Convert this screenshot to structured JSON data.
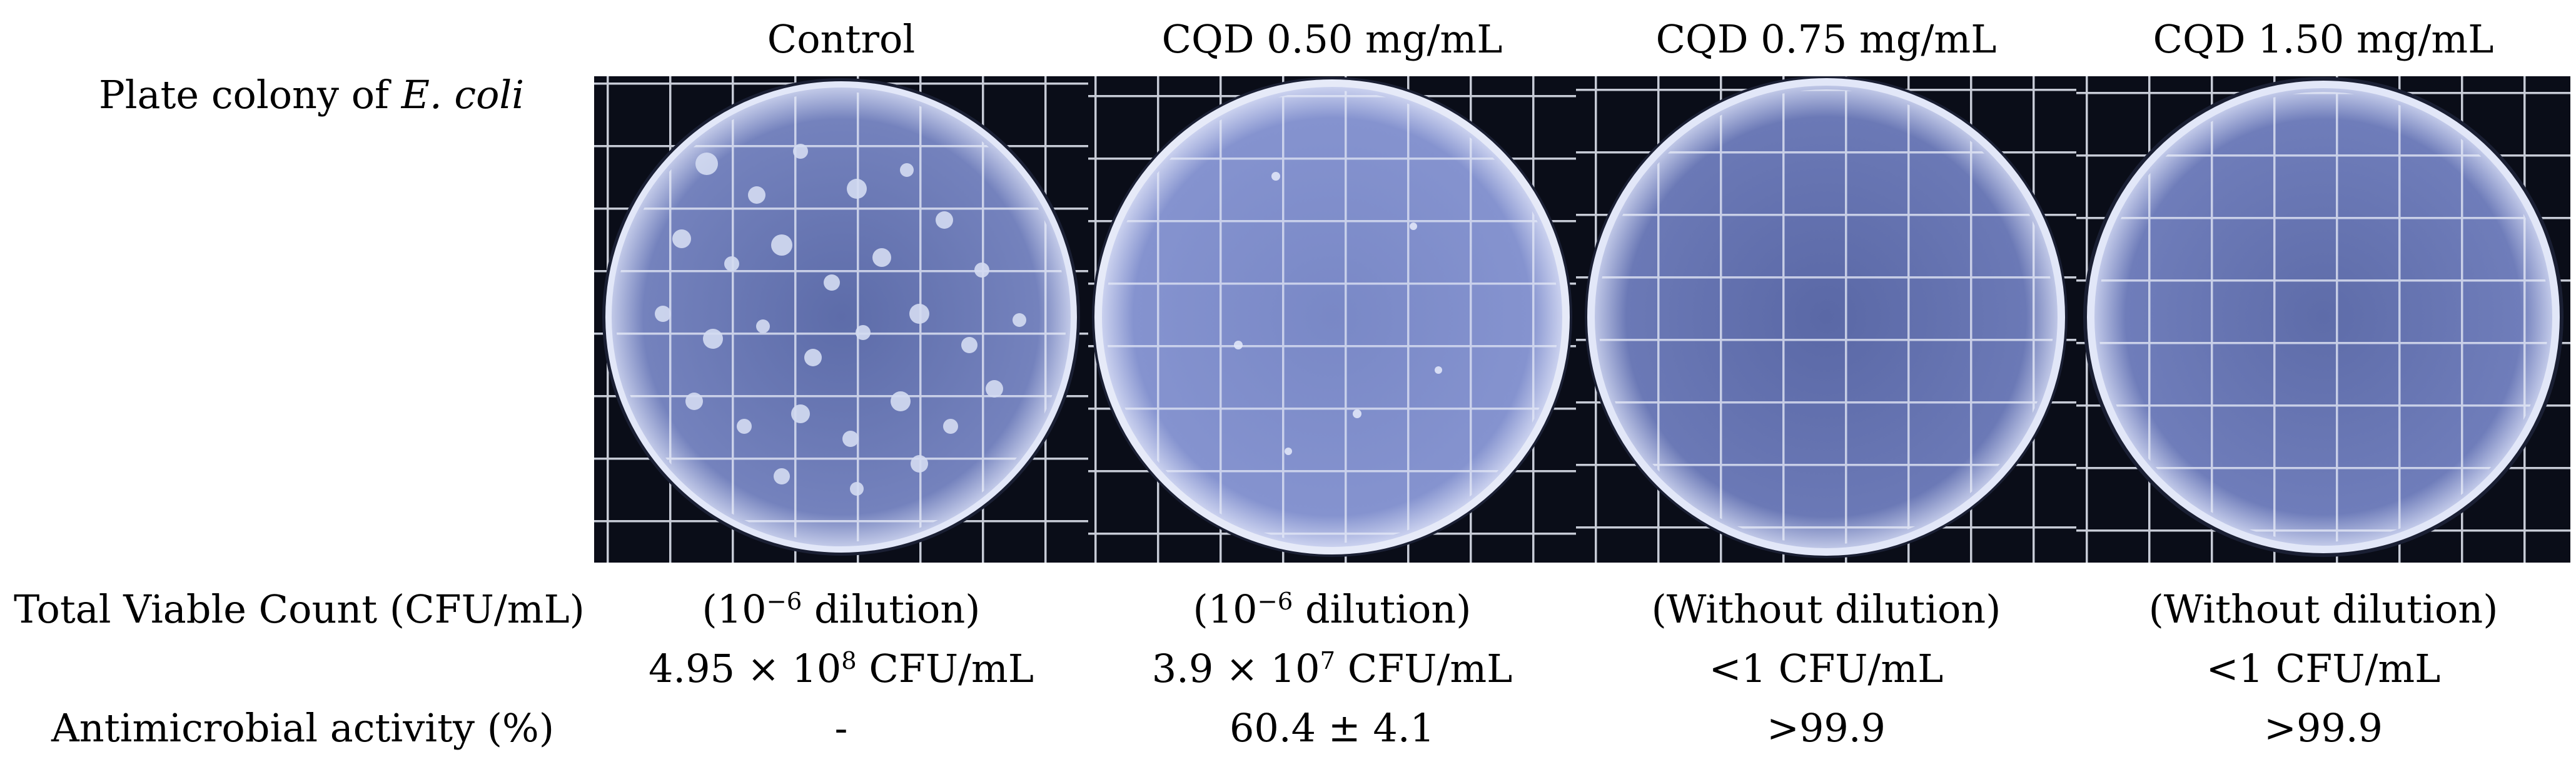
{
  "row_labels": {
    "plate": {
      "text": "Plate colony of ",
      "italic": "E. coli"
    },
    "tvc": "Total Viable Count (CFU/mL)",
    "activity": "Antimicrobial activity (%)"
  },
  "columns": [
    {
      "header": "Control",
      "dilution": {
        "prefix": "(10",
        "exp": "−6",
        "suffix": " dilution)"
      },
      "count": {
        "prefix": "4.95 × 10",
        "exp": "8",
        "suffix": " CFU/mL"
      },
      "activity": "-"
    },
    {
      "header": "CQD 0.50 mg/mL",
      "dilution": {
        "prefix": "(10",
        "exp": "−6",
        "suffix": " dilution)"
      },
      "count": {
        "prefix": "3.9 × 10",
        "exp": "7",
        "suffix": " CFU/mL"
      },
      "activity": "60.4 ± 4.1"
    },
    {
      "header": "CQD 0.75 mg/mL",
      "dilution": {
        "prefix": "(Without dilution)",
        "exp": "",
        "suffix": ""
      },
      "count": {
        "prefix": "<1 CFU/mL",
        "exp": "",
        "suffix": ""
      },
      "activity": ">99.9"
    },
    {
      "header": "CQD 1.50 mg/mL",
      "dilution": {
        "prefix": "(Without dilution)",
        "exp": "",
        "suffix": ""
      },
      "count": {
        "prefix": "<1 CFU/mL",
        "exp": "",
        "suffix": ""
      },
      "activity": ">99.9"
    }
  ],
  "colors": {
    "text": "#000000",
    "background": "#ffffff",
    "plate_bg": "#0a0d18",
    "agar": "#5f6ea8",
    "colony": "#d4dcf2"
  }
}
